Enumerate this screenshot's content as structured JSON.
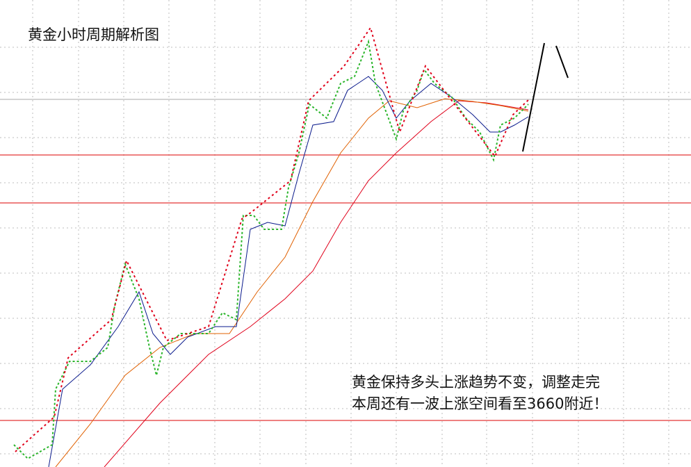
{
  "title": "黄金小时周期解析图",
  "annotation": {
    "lines": [
      "黄金保持多头上涨趋势不变，调整走完",
      "本周还有一波上涨空间看至3660附近！"
    ]
  }
}
